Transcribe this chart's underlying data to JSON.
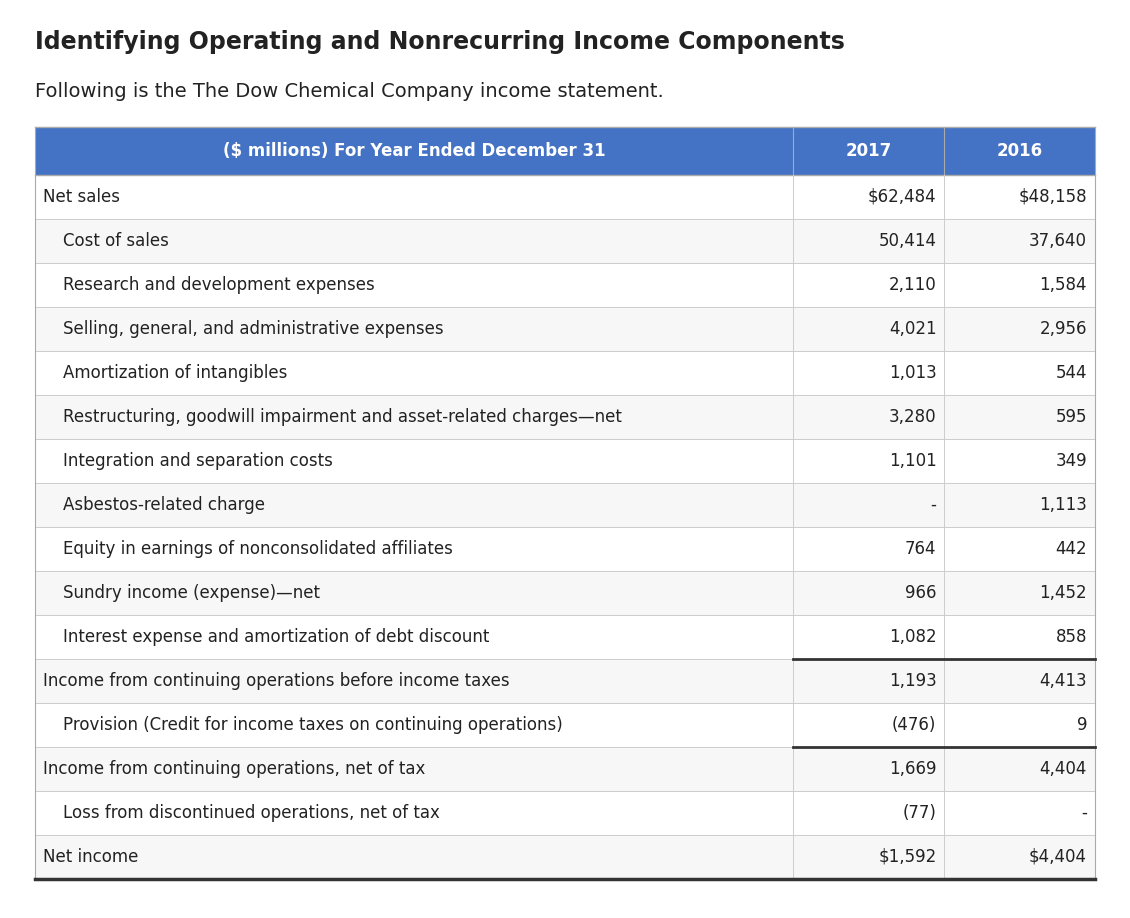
{
  "title": "Identifying Operating and Nonrecurring Income Components",
  "subtitle": "Following is the The Dow Chemical Company income statement.",
  "header": [
    "($ millions) For Year Ended December 31",
    "2017",
    "2016"
  ],
  "header_bg": "#4472c4",
  "header_text_color": "#ffffff",
  "rows": [
    {
      "label": "Net sales",
      "val2017": "$62,484",
      "val2016": "$48,158",
      "indent": false,
      "bottom_border": false
    },
    {
      "label": "Cost of sales",
      "val2017": "50,414",
      "val2016": "37,640",
      "indent": true,
      "bottom_border": false
    },
    {
      "label": "Research and development expenses",
      "val2017": "2,110",
      "val2016": "1,584",
      "indent": true,
      "bottom_border": false
    },
    {
      "label": "Selling, general, and administrative expenses",
      "val2017": "4,021",
      "val2016": "2,956",
      "indent": true,
      "bottom_border": false
    },
    {
      "label": "Amortization of intangibles",
      "val2017": "1,013",
      "val2016": "544",
      "indent": true,
      "bottom_border": false
    },
    {
      "label": "Restructuring, goodwill impairment and asset-related charges—net",
      "val2017": "3,280",
      "val2016": "595",
      "indent": true,
      "bottom_border": false
    },
    {
      "label": "Integration and separation costs",
      "val2017": "1,101",
      "val2016": "349",
      "indent": true,
      "bottom_border": false
    },
    {
      "label": "Asbestos-related charge",
      "val2017": "-",
      "val2016": "1,113",
      "indent": true,
      "bottom_border": false
    },
    {
      "label": "Equity in earnings of nonconsolidated affiliates",
      "val2017": "764",
      "val2016": "442",
      "indent": true,
      "bottom_border": false
    },
    {
      "label": "Sundry income (expense)—net",
      "val2017": "966",
      "val2016": "1,452",
      "indent": true,
      "bottom_border": false
    },
    {
      "label": "Interest expense and amortization of debt discount",
      "val2017": "1,082",
      "val2016": "858",
      "indent": true,
      "bottom_border": true
    },
    {
      "label": "Income from continuing operations before income taxes",
      "val2017": "1,193",
      "val2016": "4,413",
      "indent": false,
      "bottom_border": false
    },
    {
      "label": "Provision (Credit for income taxes on continuing operations)",
      "val2017": "(476)",
      "val2016": "9",
      "indent": true,
      "bottom_border": true
    },
    {
      "label": "Income from continuing operations, net of tax",
      "val2017": "1,669",
      "val2016": "4,404",
      "indent": false,
      "bottom_border": false
    },
    {
      "label": "Loss from discontinued operations, net of tax",
      "val2017": "(77)",
      "val2016": "-",
      "indent": true,
      "bottom_border": false
    },
    {
      "label": "Net income",
      "val2017": "$1,592",
      "val2016": "$4,404",
      "indent": false,
      "bottom_border": true
    }
  ],
  "bg_color": "#ffffff",
  "border_color_light": "#cccccc",
  "border_color_dark": "#333333",
  "text_color": "#222222",
  "title_fontsize": 17,
  "subtitle_fontsize": 14,
  "table_fontsize": 12
}
